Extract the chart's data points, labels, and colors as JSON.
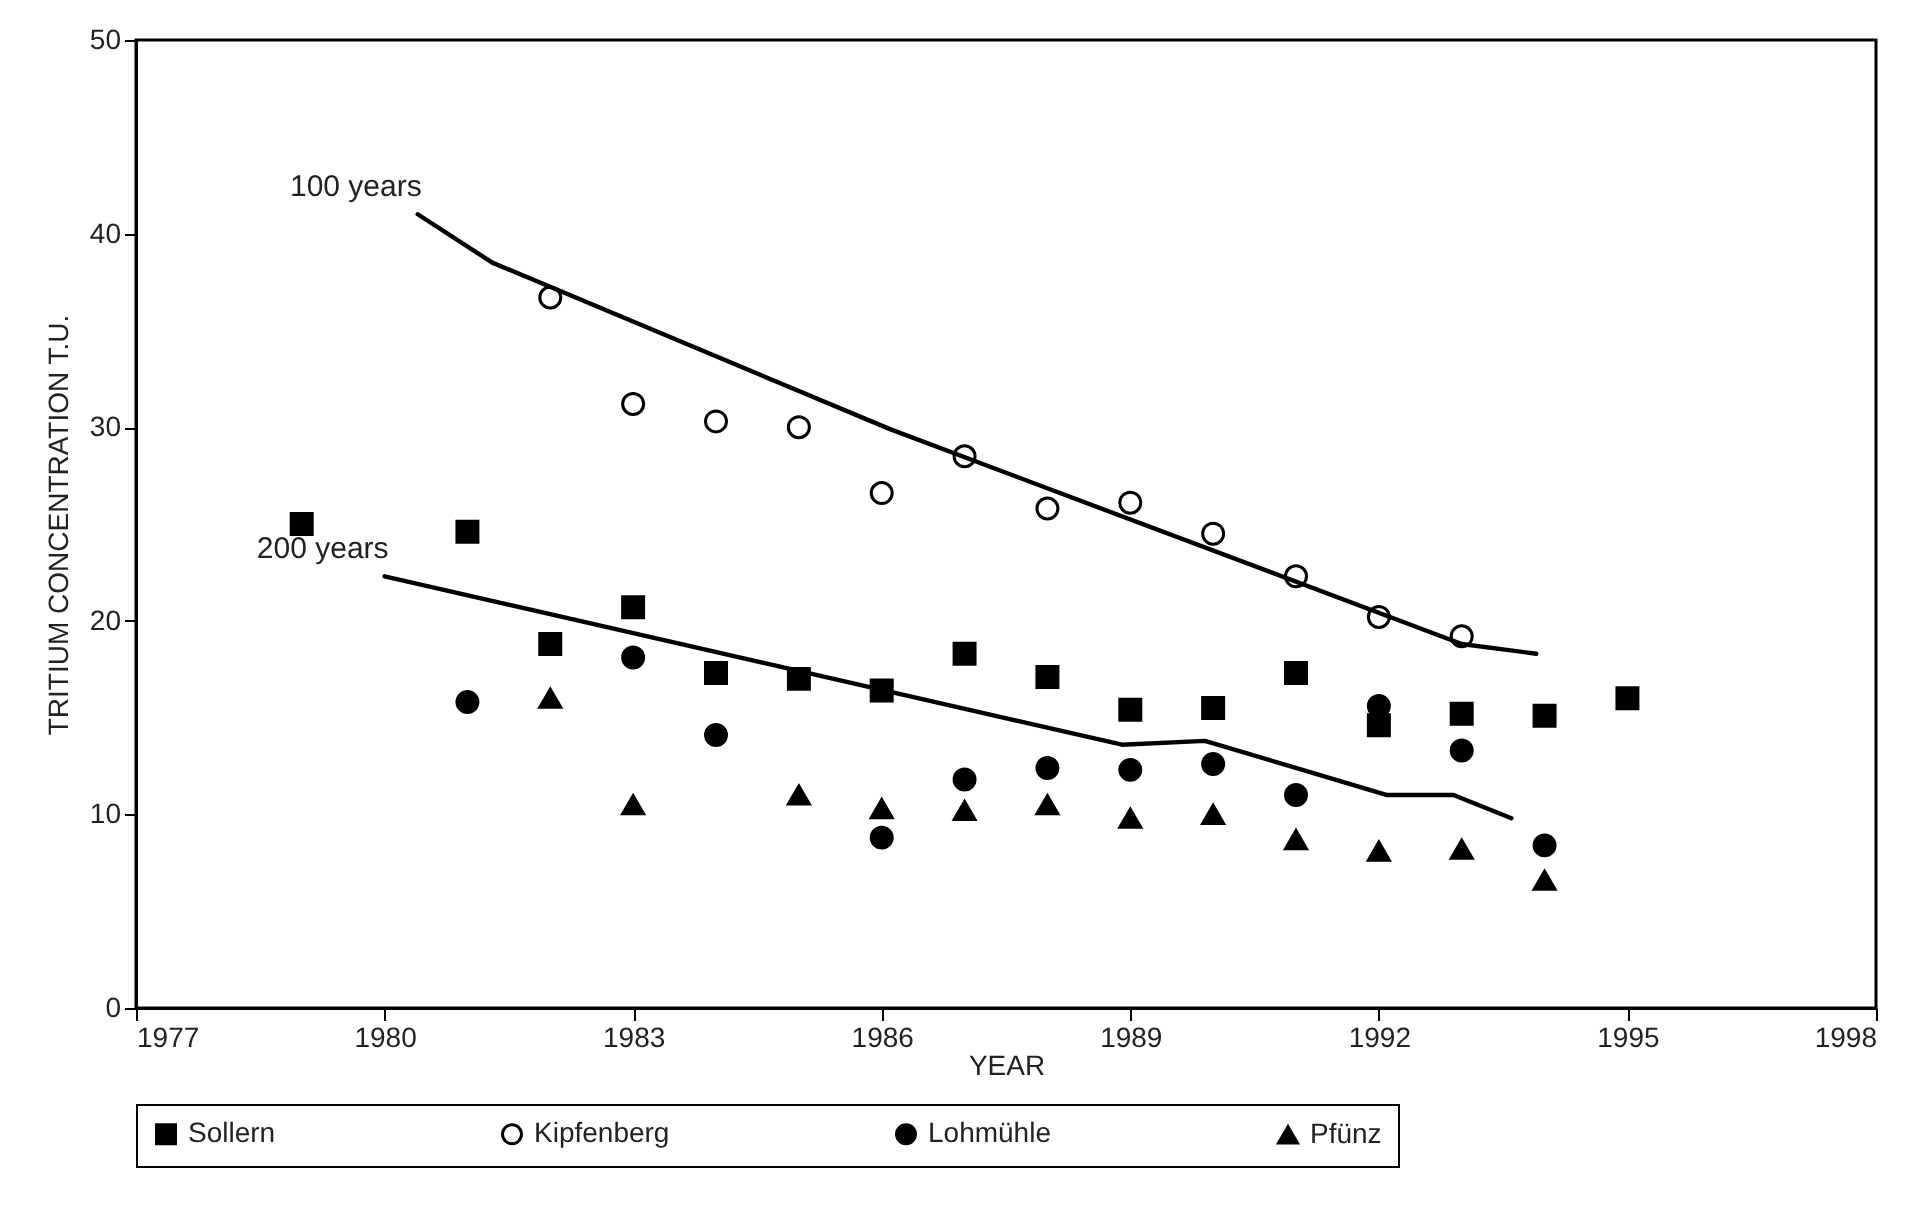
{
  "chart_data": {
    "type": "scatter",
    "xlabel": "YEAR",
    "ylabel": "TRITIUM CONCENTRATION T.U.",
    "xlim": [
      1977,
      1998
    ],
    "xticks": [
      1977,
      1980,
      1983,
      1986,
      1989,
      1992,
      1995,
      1998
    ],
    "ylim": [
      0,
      50
    ],
    "yticks": [
      0,
      10,
      20,
      30,
      40,
      50
    ],
    "grid": false,
    "legend": "bottom",
    "series": [
      {
        "name": "Sollern",
        "marker": "square",
        "color": "#000000",
        "x": [
          1979,
          1981,
          1982,
          1983,
          1984,
          1985,
          1986,
          1987,
          1988,
          1989,
          1990,
          1991,
          1992,
          1993,
          1994,
          1995
        ],
        "values": [
          25,
          24.6,
          18.8,
          20.7,
          17.3,
          17,
          16.4,
          18.3,
          17.1,
          15.4,
          15.5,
          17.3,
          14.6,
          15.2,
          15.1,
          16
        ]
      },
      {
        "name": "Kipfenberg",
        "marker": "circle",
        "color": "#ffffff",
        "x": [
          1982,
          1983,
          1984,
          1985,
          1986,
          1987,
          1988,
          1989,
          1990,
          1991,
          1992,
          1993
        ],
        "values": [
          36.7,
          31.2,
          30.3,
          30,
          26.6,
          28.5,
          25.8,
          26.1,
          24.5,
          22.3,
          20.2,
          19.2
        ]
      },
      {
        "name": "Lohmühle",
        "marker": "circle",
        "color": "#000000",
        "x": [
          1981,
          1983,
          1984,
          1986,
          1987,
          1988,
          1989,
          1990,
          1991,
          1992,
          1993,
          1994
        ],
        "values": [
          15.8,
          18.1,
          14.1,
          8.8,
          11.8,
          12.4,
          12.3,
          12.6,
          11,
          15.6,
          13.3,
          8.4
        ]
      },
      {
        "name": "Pfünz",
        "marker": "triangle",
        "color": "#000000",
        "x": [
          1982,
          1983,
          1985,
          1986,
          1987,
          1988,
          1989,
          1990,
          1991,
          1992,
          1993,
          1994
        ],
        "values": [
          16,
          10.5,
          11,
          10.3,
          10.2,
          10.5,
          9.8,
          10,
          8.7,
          8.1,
          8.2,
          6.6
        ]
      },
      {
        "name": "100 years",
        "type": "line",
        "color": "#000000",
        "x": [
          1980.4,
          1981.3,
          1986.1,
          1993,
          1993.9
        ],
        "values": [
          41,
          38.5,
          29.9,
          18.8,
          18.3
        ]
      },
      {
        "name": "200 years",
        "type": "line",
        "color": "#000000",
        "x": [
          1980,
          1988.9,
          1989.9,
          1992.1,
          1992.9,
          1993.6
        ],
        "values": [
          22.3,
          13.6,
          13.8,
          11,
          11,
          9.8
        ]
      }
    ]
  }
}
